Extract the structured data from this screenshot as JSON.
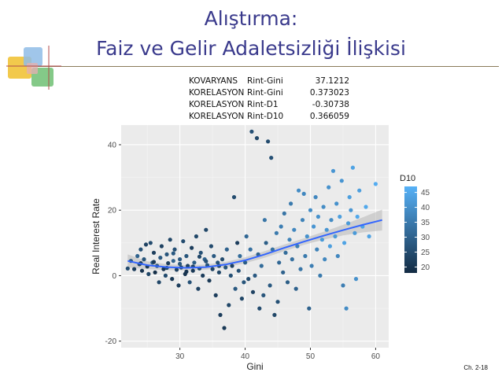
{
  "slide": {
    "title_line1": "Alıştırma:",
    "title_line2": "Faiz ve Gelir Adaletsizliği İlişkisi",
    "footer": "Ch. 2-18"
  },
  "stats": [
    {
      "label": "KOVARYANS",
      "pair": "Rint-Gini",
      "value": "37.1212"
    },
    {
      "label": "KORELASYON",
      "pair": "Rint-Gini",
      "value": "0.373023"
    },
    {
      "label": "KORELASYON",
      "pair": "Rint-D1",
      "value": "-0.30738"
    },
    {
      "label": "KORELASYON",
      "pair": "Rint-D10",
      "value": "0.366059"
    }
  ],
  "chart_data": {
    "type": "scatter",
    "xlabel": "Gini",
    "ylabel": "Real Interest Rate",
    "xlim": [
      21,
      62
    ],
    "ylim": [
      -22,
      46
    ],
    "xticks": [
      30,
      40,
      50,
      60
    ],
    "yticks": [
      -20,
      0,
      20,
      40
    ],
    "grid": true,
    "legend": {
      "title": "D10",
      "ticks": [
        20,
        25,
        30,
        35,
        40,
        45
      ],
      "range": [
        18,
        47
      ],
      "placement": "right"
    },
    "colors": {
      "low": "#132b43",
      "high": "#56b1f7",
      "trend": "#3366ff",
      "band": "#bdbdbd",
      "panel": "#ebebeb"
    },
    "trend": {
      "x": [
        22,
        25,
        28,
        31,
        34,
        37,
        40,
        43,
        46,
        49,
        52,
        55,
        58,
        61
      ],
      "y": [
        4.5,
        3.2,
        2.6,
        2.4,
        2.6,
        3.4,
        4.7,
        6.5,
        8.5,
        10.4,
        12.2,
        13.9,
        15.5,
        17.0
      ],
      "band_halfwidth": [
        2.0,
        1.2,
        0.9,
        0.8,
        0.8,
        0.8,
        0.9,
        1.0,
        1.0,
        1.0,
        1.2,
        1.6,
        2.3,
        3.2
      ]
    },
    "points": [
      {
        "x": 22,
        "y": 2.2,
        "c": 25
      },
      {
        "x": 22.5,
        "y": 4.5,
        "c": 28
      },
      {
        "x": 23,
        "y": 2,
        "c": 22
      },
      {
        "x": 23.5,
        "y": 6,
        "c": 30
      },
      {
        "x": 23.8,
        "y": 3.5,
        "c": 24
      },
      {
        "x": 24,
        "y": 8,
        "c": 26
      },
      {
        "x": 24.2,
        "y": 1.5,
        "c": 20
      },
      {
        "x": 24.5,
        "y": 5,
        "c": 27
      },
      {
        "x": 24.8,
        "y": 9.5,
        "c": 23
      },
      {
        "x": 25,
        "y": 2.8,
        "c": 21
      },
      {
        "x": 25.2,
        "y": 0.5,
        "c": 24
      },
      {
        "x": 25.5,
        "y": 10,
        "c": 25
      },
      {
        "x": 25.8,
        "y": 4,
        "c": 29
      },
      {
        "x": 26,
        "y": 7,
        "c": 22
      },
      {
        "x": 26.2,
        "y": 1,
        "c": 19
      },
      {
        "x": 26.5,
        "y": 3,
        "c": 26
      },
      {
        "x": 26.8,
        "y": -2,
        "c": 24
      },
      {
        "x": 27,
        "y": 5.5,
        "c": 28
      },
      {
        "x": 27.2,
        "y": 9,
        "c": 23
      },
      {
        "x": 27.5,
        "y": 2,
        "c": 20
      },
      {
        "x": 27.8,
        "y": 0,
        "c": 25
      },
      {
        "x": 28,
        "y": 6.5,
        "c": 27
      },
      {
        "x": 28.2,
        "y": 3.8,
        "c": 22
      },
      {
        "x": 28.5,
        "y": 11,
        "c": 24
      },
      {
        "x": 28.8,
        "y": -1,
        "c": 21
      },
      {
        "x": 29,
        "y": 4.5,
        "c": 30
      },
      {
        "x": 29.2,
        "y": 8,
        "c": 26
      },
      {
        "x": 29.5,
        "y": 1.8,
        "c": 23
      },
      {
        "x": 29.8,
        "y": -3,
        "c": 22
      },
      {
        "x": 30,
        "y": 5,
        "c": 28
      },
      {
        "x": 30.2,
        "y": 2.5,
        "c": 24
      },
      {
        "x": 30.5,
        "y": 10.5,
        "c": 25
      },
      {
        "x": 30.8,
        "y": 0.5,
        "c": 20
      },
      {
        "x": 31,
        "y": 6,
        "c": 27
      },
      {
        "x": 31.2,
        "y": 3,
        "c": 23
      },
      {
        "x": 31.5,
        "y": -2,
        "c": 26
      },
      {
        "x": 31.8,
        "y": 8.5,
        "c": 22
      },
      {
        "x": 32,
        "y": 1.5,
        "c": 21
      },
      {
        "x": 32.2,
        "y": 4,
        "c": 29
      },
      {
        "x": 32.5,
        "y": 12,
        "c": 24
      },
      {
        "x": 32.8,
        "y": -4,
        "c": 23
      },
      {
        "x": 33,
        "y": 2.2,
        "c": 25
      },
      {
        "x": 33.2,
        "y": 7,
        "c": 26
      },
      {
        "x": 33.5,
        "y": 0,
        "c": 22
      },
      {
        "x": 33.8,
        "y": 5,
        "c": 30
      },
      {
        "x": 34,
        "y": 14,
        "c": 24
      },
      {
        "x": 34.2,
        "y": 3.2,
        "c": 27
      },
      {
        "x": 34.5,
        "y": -1.5,
        "c": 21
      },
      {
        "x": 34.8,
        "y": 9,
        "c": 25
      },
      {
        "x": 35,
        "y": 2,
        "c": 23
      },
      {
        "x": 35.2,
        "y": 6,
        "c": 28
      },
      {
        "x": 35.5,
        "y": -6,
        "c": 22
      },
      {
        "x": 35.8,
        "y": 4,
        "c": 26
      },
      {
        "x": 36,
        "y": 1,
        "c": 24
      },
      {
        "x": 36.2,
        "y": -12,
        "c": 22
      },
      {
        "x": 36.5,
        "y": 5,
        "c": 25
      },
      {
        "x": 36.8,
        "y": -16,
        "c": 21
      },
      {
        "x": 37,
        "y": 2.5,
        "c": 27
      },
      {
        "x": 37.2,
        "y": 8,
        "c": 30
      },
      {
        "x": 37.5,
        "y": -9,
        "c": 24
      },
      {
        "x": 37.8,
        "y": 0,
        "c": 26
      },
      {
        "x": 38,
        "y": 3,
        "c": 23
      },
      {
        "x": 38.3,
        "y": 24,
        "c": 25
      },
      {
        "x": 38.5,
        "y": -4,
        "c": 28
      },
      {
        "x": 38.8,
        "y": 10,
        "c": 22
      },
      {
        "x": 39,
        "y": 1.5,
        "c": 26
      },
      {
        "x": 39.2,
        "y": 6,
        "c": 32
      },
      {
        "x": 39.5,
        "y": -7,
        "c": 24
      },
      {
        "x": 39.8,
        "y": -2,
        "c": 27
      },
      {
        "x": 40,
        "y": 4,
        "c": 29
      },
      {
        "x": 40.2,
        "y": 12,
        "c": 31
      },
      {
        "x": 40.5,
        "y": -1,
        "c": 25
      },
      {
        "x": 40.8,
        "y": 8,
        "c": 33
      },
      {
        "x": 41,
        "y": 44,
        "c": 26
      },
      {
        "x": 41.2,
        "y": -5,
        "c": 23
      },
      {
        "x": 41.5,
        "y": 0,
        "c": 28
      },
      {
        "x": 41.8,
        "y": 42,
        "c": 24
      },
      {
        "x": 42,
        "y": 6.5,
        "c": 30
      },
      {
        "x": 42.2,
        "y": -10,
        "c": 25
      },
      {
        "x": 42.5,
        "y": 3,
        "c": 32
      },
      {
        "x": 42.8,
        "y": -6,
        "c": 27
      },
      {
        "x": 43,
        "y": 17,
        "c": 34
      },
      {
        "x": 43.2,
        "y": 10,
        "c": 29
      },
      {
        "x": 43.5,
        "y": 41,
        "c": 25
      },
      {
        "x": 43.8,
        "y": -3,
        "c": 28
      },
      {
        "x": 44,
        "y": 36,
        "c": 26
      },
      {
        "x": 44.2,
        "y": 8,
        "c": 33
      },
      {
        "x": 44.5,
        "y": -12,
        "c": 24
      },
      {
        "x": 44.8,
        "y": 13,
        "c": 35
      },
      {
        "x": 45,
        "y": -8,
        "c": 26
      },
      {
        "x": 45.2,
        "y": 4,
        "c": 31
      },
      {
        "x": 45.5,
        "y": 15,
        "c": 36
      },
      {
        "x": 45.8,
        "y": 1,
        "c": 30
      },
      {
        "x": 46,
        "y": 19,
        "c": 34
      },
      {
        "x": 46.2,
        "y": 7,
        "c": 32
      },
      {
        "x": 46.5,
        "y": -2,
        "c": 29
      },
      {
        "x": 46.8,
        "y": 11,
        "c": 37
      },
      {
        "x": 47,
        "y": 22,
        "c": 35
      },
      {
        "x": 47.2,
        "y": 5,
        "c": 33
      },
      {
        "x": 47.5,
        "y": 14,
        "c": 38
      },
      {
        "x": 47.8,
        "y": -4,
        "c": 30
      },
      {
        "x": 48,
        "y": 9,
        "c": 36
      },
      {
        "x": 48.2,
        "y": 26,
        "c": 39
      },
      {
        "x": 48.5,
        "y": 2,
        "c": 34
      },
      {
        "x": 48.8,
        "y": 17,
        "c": 37
      },
      {
        "x": 49,
        "y": 25,
        "c": 38
      },
      {
        "x": 49.2,
        "y": 6,
        "c": 35
      },
      {
        "x": 49.5,
        "y": 12,
        "c": 40
      },
      {
        "x": 49.8,
        "y": -10,
        "c": 30
      },
      {
        "x": 50,
        "y": 20,
        "c": 39
      },
      {
        "x": 50.2,
        "y": 3,
        "c": 36
      },
      {
        "x": 50.5,
        "y": 15,
        "c": 41
      },
      {
        "x": 50.8,
        "y": 24,
        "c": 38
      },
      {
        "x": 51,
        "y": 8,
        "c": 37
      },
      {
        "x": 51.2,
        "y": 18,
        "c": 40
      },
      {
        "x": 51.5,
        "y": 0,
        "c": 35
      },
      {
        "x": 51.8,
        "y": 11,
        "c": 42
      },
      {
        "x": 52,
        "y": 21,
        "c": 39
      },
      {
        "x": 52.2,
        "y": 5,
        "c": 38
      },
      {
        "x": 52.5,
        "y": 14,
        "c": 41
      },
      {
        "x": 52.8,
        "y": 27,
        "c": 40
      },
      {
        "x": 53,
        "y": 9,
        "c": 43
      },
      {
        "x": 53.2,
        "y": 17,
        "c": 39
      },
      {
        "x": 53.5,
        "y": 32,
        "c": 41
      },
      {
        "x": 53.8,
        "y": 12,
        "c": 42
      },
      {
        "x": 54,
        "y": 22,
        "c": 40
      },
      {
        "x": 54.2,
        "y": 6,
        "c": 38
      },
      {
        "x": 54.5,
        "y": 18,
        "c": 43
      },
      {
        "x": 54.8,
        "y": 29,
        "c": 41
      },
      {
        "x": 55,
        "y": -3,
        "c": 36
      },
      {
        "x": 55.2,
        "y": 10,
        "c": 44
      },
      {
        "x": 55.5,
        "y": -10,
        "c": 39
      },
      {
        "x": 55.8,
        "y": 16,
        "c": 42
      },
      {
        "x": 56,
        "y": 24,
        "c": 43
      },
      {
        "x": 56.2,
        "y": 20,
        "c": 41
      },
      {
        "x": 56.5,
        "y": 33,
        "c": 44
      },
      {
        "x": 56.8,
        "y": 13,
        "c": 42
      },
      {
        "x": 57,
        "y": -1,
        "c": 40
      },
      {
        "x": 57.2,
        "y": 18,
        "c": 45
      },
      {
        "x": 57.5,
        "y": 26,
        "c": 43
      },
      {
        "x": 58,
        "y": 15,
        "c": 44
      },
      {
        "x": 58.5,
        "y": 21,
        "c": 45
      },
      {
        "x": 59,
        "y": 12,
        "c": 44
      },
      {
        "x": 60,
        "y": 28,
        "c": 46
      },
      {
        "x": 26,
        "y": 4.2,
        "c": 21
      },
      {
        "x": 28,
        "y": 2.4,
        "c": 25
      },
      {
        "x": 30,
        "y": 3.6,
        "c": 27
      },
      {
        "x": 32,
        "y": 2.8,
        "c": 23
      },
      {
        "x": 34,
        "y": 4.4,
        "c": 26
      },
      {
        "x": 36,
        "y": 3,
        "c": 24
      },
      {
        "x": 24,
        "y": 3.8,
        "c": 22
      },
      {
        "x": 29,
        "y": 6.8,
        "c": 28
      },
      {
        "x": 31,
        "y": 1.2,
        "c": 20
      },
      {
        "x": 33,
        "y": 5.8,
        "c": 24
      }
    ]
  }
}
